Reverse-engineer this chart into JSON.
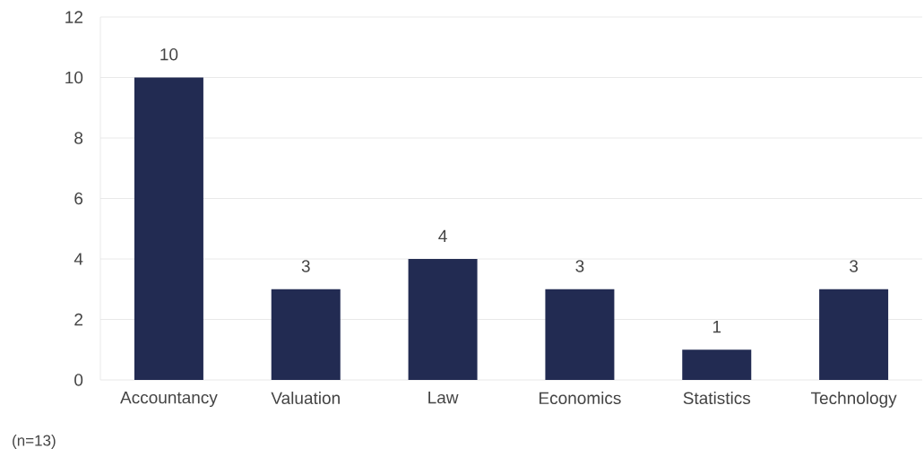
{
  "chart_data": {
    "type": "bar",
    "categories": [
      "Accountancy",
      "Valuation",
      "Law",
      "Economics",
      "Statistics",
      "Technology"
    ],
    "values": [
      10,
      3,
      4,
      3,
      1,
      3
    ],
    "color": "#222b52",
    "ylim": [
      0,
      12
    ],
    "yticks": [
      0,
      2,
      4,
      6,
      8,
      10,
      12
    ],
    "grid": "y",
    "data_labels": true,
    "annotations": [
      "(n=13)"
    ]
  }
}
